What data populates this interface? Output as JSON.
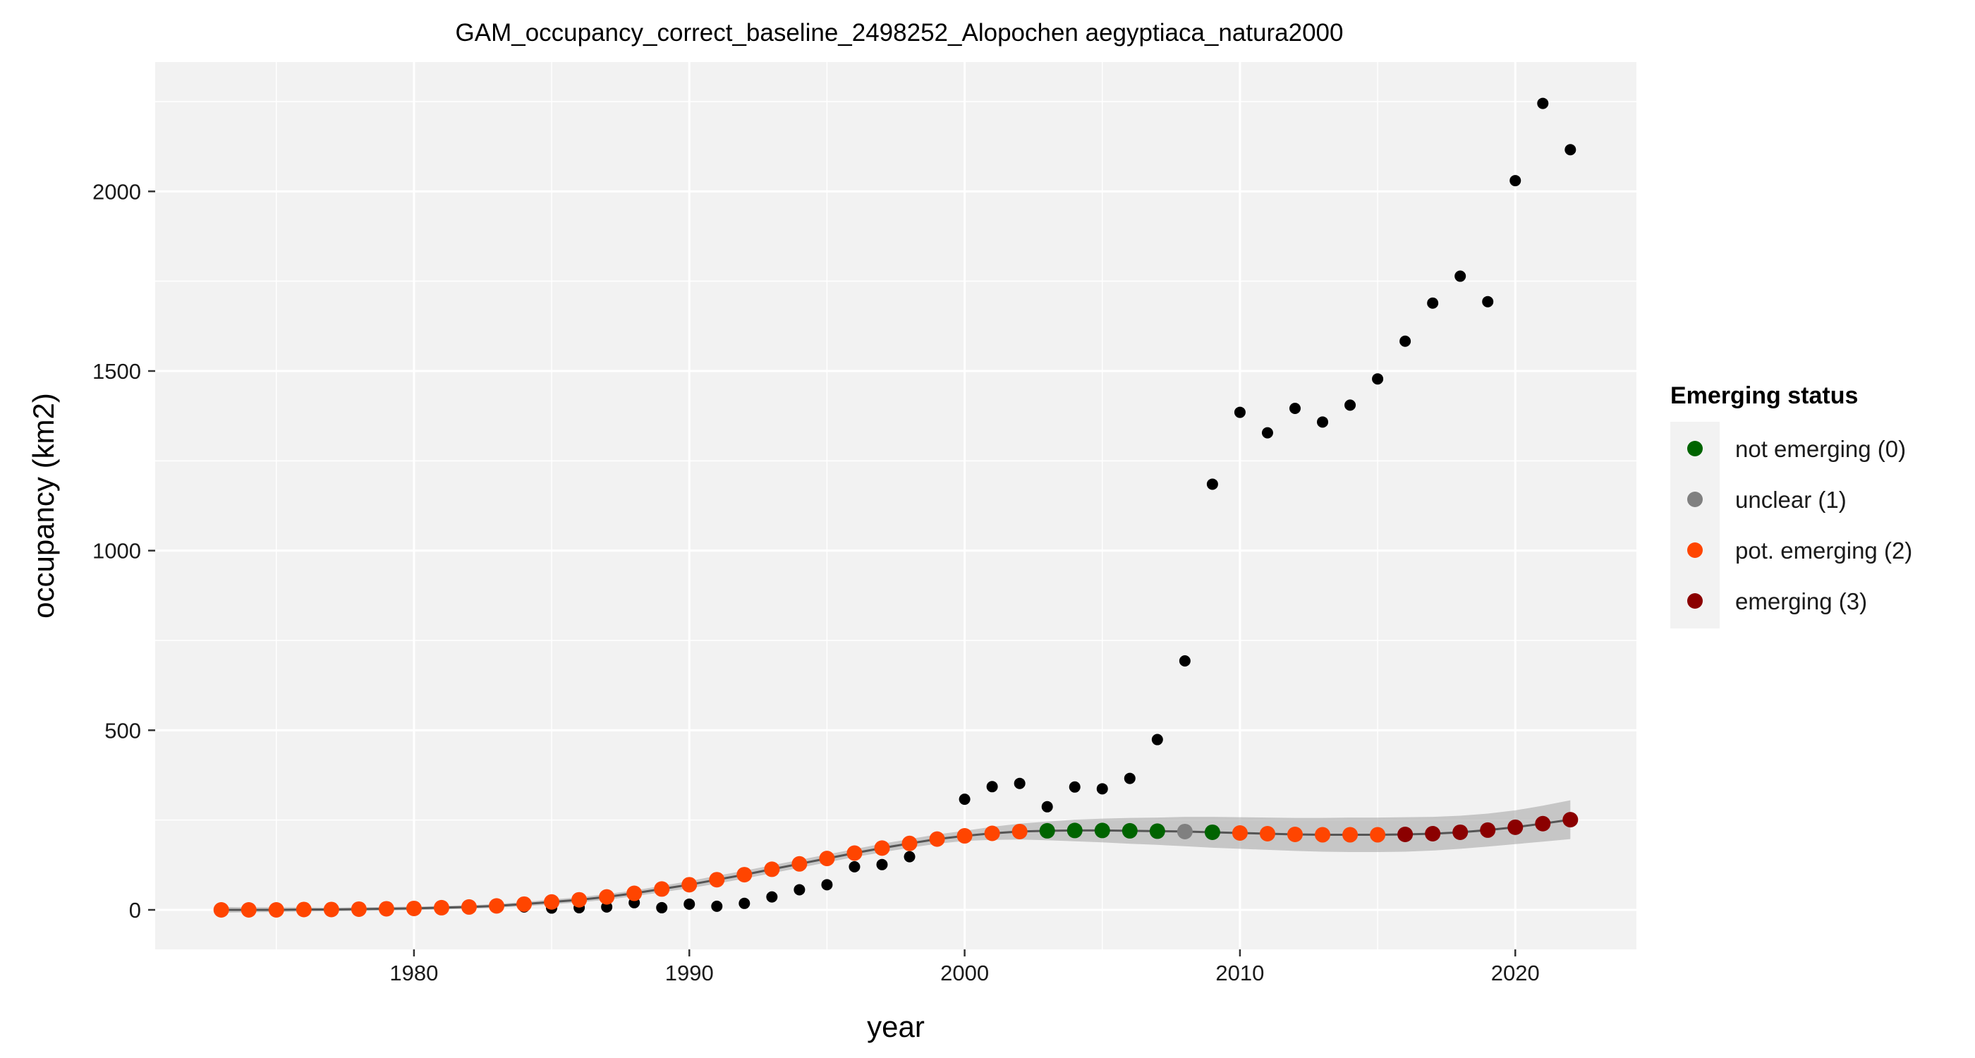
{
  "chart_data": {
    "type": "scatter",
    "title": "GAM_occupancy_correct_baseline_2498252_Alopochen aegyptiaca_natura2000",
    "xlabel": "year",
    "ylabel": "occupancy (km2)",
    "xlim": [
      1970.6,
      2024.4
    ],
    "ylim": [
      -110,
      2360
    ],
    "x_ticks": [
      1980,
      1990,
      2000,
      2010,
      2020
    ],
    "y_ticks": [
      0,
      500,
      1000,
      1500,
      2000
    ],
    "grid": true,
    "legend_position": "right",
    "legend": {
      "title": "Emerging status",
      "entries": [
        {
          "label": "not emerging (0)",
          "color": "#006400"
        },
        {
          "label": "unclear (1)",
          "color": "#808080"
        },
        {
          "label": "pot. emerging (2)",
          "color": "#ff4500"
        },
        {
          "label": "emerging (3)",
          "color": "#8b0000"
        }
      ]
    },
    "observed": {
      "color": "#000000",
      "x": [
        1973,
        1974,
        1975,
        1976,
        1977,
        1978,
        1979,
        1980,
        1981,
        1982,
        1983,
        1984,
        1985,
        1986,
        1987,
        1988,
        1989,
        1990,
        1991,
        1992,
        1993,
        1994,
        1995,
        1996,
        1997,
        1998,
        1999,
        2000,
        2001,
        2002,
        2003,
        2004,
        2005,
        2006,
        2007,
        2008,
        2009,
        2010,
        2011,
        2012,
        2013,
        2014,
        2015,
        2016,
        2017,
        2018,
        2019,
        2020,
        2021,
        2022
      ],
      "y": [
        0,
        0,
        0,
        0,
        0,
        0,
        0,
        2,
        3,
        4,
        6,
        8,
        5,
        6,
        8,
        20,
        6,
        16,
        10,
        18,
        36,
        56,
        70,
        120,
        126,
        148,
        195,
        308,
        343,
        352,
        287,
        342,
        337,
        366,
        474,
        693,
        1185,
        1385,
        1328,
        1396,
        1358,
        1405,
        1478,
        1583,
        1689,
        1764,
        1693,
        2030,
        2245,
        2116
      ]
    },
    "smoothed": {
      "x": [
        1973,
        1974,
        1975,
        1976,
        1977,
        1978,
        1979,
        1980,
        1981,
        1982,
        1983,
        1984,
        1985,
        1986,
        1987,
        1988,
        1989,
        1990,
        1991,
        1992,
        1993,
        1994,
        1995,
        1996,
        1997,
        1998,
        1999,
        2000,
        2001,
        2002,
        2003,
        2004,
        2005,
        2006,
        2007,
        2008,
        2009,
        2010,
        2011,
        2012,
        2013,
        2014,
        2015,
        2016,
        2017,
        2018,
        2019,
        2020,
        2021,
        2022
      ],
      "y": [
        0,
        0,
        0,
        1,
        1,
        2,
        3,
        4,
        6,
        8,
        11,
        16,
        22,
        28,
        36,
        46,
        58,
        70,
        84,
        98,
        113,
        128,
        143,
        158,
        172,
        185,
        197,
        206,
        213,
        218,
        220,
        221,
        221,
        220,
        219,
        218,
        216,
        214,
        212,
        210,
        209,
        209,
        209,
        210,
        212,
        216,
        222,
        230,
        240,
        251
      ],
      "lower": [
        -8,
        -7,
        -6,
        -5,
        -4,
        -3,
        -2,
        -1,
        1,
        3,
        6,
        10,
        15,
        21,
        28,
        38,
        49,
        60,
        73,
        87,
        102,
        117,
        132,
        147,
        160,
        173,
        184,
        192,
        195,
        196,
        194,
        191,
        188,
        184,
        181,
        177,
        173,
        170,
        167,
        164,
        162,
        161,
        161,
        162,
        165,
        170,
        176,
        183,
        190,
        197
      ],
      "upper": [
        8,
        7,
        7,
        7,
        6,
        7,
        8,
        9,
        11,
        13,
        16,
        22,
        29,
        35,
        44,
        54,
        67,
        80,
        95,
        109,
        124,
        139,
        154,
        169,
        184,
        197,
        210,
        220,
        231,
        240,
        246,
        251,
        254,
        256,
        257,
        259,
        259,
        258,
        257,
        256,
        256,
        257,
        257,
        258,
        259,
        262,
        268,
        277,
        290,
        305
      ],
      "status": [
        2,
        2,
        2,
        2,
        2,
        2,
        2,
        2,
        2,
        2,
        2,
        2,
        2,
        2,
        2,
        2,
        2,
        2,
        2,
        2,
        2,
        2,
        2,
        2,
        2,
        2,
        2,
        2,
        2,
        2,
        0,
        0,
        0,
        0,
        0,
        1,
        0,
        2,
        2,
        2,
        2,
        2,
        2,
        3,
        3,
        3,
        3,
        3,
        3,
        3
      ]
    }
  }
}
